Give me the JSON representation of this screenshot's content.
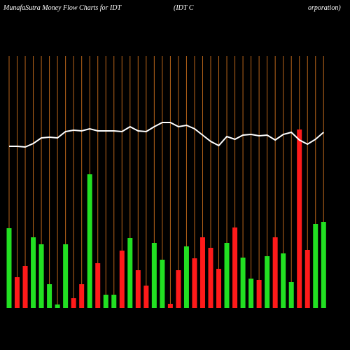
{
  "chart_data": {
    "type": "bar",
    "title": "MunafaSutra  Money Flow  Charts for IDT",
    "subtitle": "(IDT C",
    "subtitle_end": "orporation)",
    "categories": [
      null,
      null,
      null,
      null,
      null,
      null,
      null,
      null,
      null,
      null,
      null,
      null,
      null,
      null,
      null,
      null,
      null,
      null,
      null,
      null,
      null,
      null,
      null,
      null,
      null,
      null,
      null,
      null,
      null,
      null,
      null,
      null,
      null,
      null,
      null,
      null,
      null,
      null,
      null,
      null
    ],
    "values": [
      114,
      44,
      60,
      101,
      91,
      34,
      5,
      91,
      14,
      34,
      191,
      64,
      19,
      19,
      82,
      100,
      54,
      32,
      93,
      69,
      6,
      54,
      88,
      71,
      101,
      86,
      56,
      93,
      115,
      72,
      42,
      40,
      74,
      101,
      78,
      37,
      255,
      83,
      120,
      123
    ],
    "colors": [
      "#22e022",
      "#ff1a1a",
      "#ff1a1a",
      "#22e022",
      "#22e022",
      "#22e022",
      "#22e022",
      "#22e022",
      "#ff1a1a",
      "#ff1a1a",
      "#22e022",
      "#ff1a1a",
      "#22e022",
      "#22e022",
      "#ff1a1a",
      "#22e022",
      "#ff1a1a",
      "#ff1a1a",
      "#22e022",
      "#22e022",
      "#ff1a1a",
      "#ff1a1a",
      "#22e022",
      "#ff1a1a",
      "#ff1a1a",
      "#ff1a1a",
      "#ff1a1a",
      "#22e022",
      "#ff1a1a",
      "#22e022",
      "#22e022",
      "#ff1a1a",
      "#22e022",
      "#ff1a1a",
      "#22e022",
      "#22e022",
      "#ff1a1a",
      "#ff1a1a",
      "#22e022",
      "#22e022"
    ],
    "line": {
      "values": [
        231,
        231,
        230,
        235,
        243,
        244,
        243,
        252,
        254,
        253,
        256,
        253,
        253,
        253,
        252,
        259,
        253,
        252,
        259,
        265,
        265,
        259,
        261,
        256,
        247,
        238,
        232,
        245,
        241,
        247,
        248,
        246,
        247,
        240,
        248,
        251,
        240,
        234,
        241,
        251
      ],
      "color": "#ffffff"
    },
    "category_line_color": "#b8651a",
    "ylim": [
      0,
      440
    ]
  }
}
